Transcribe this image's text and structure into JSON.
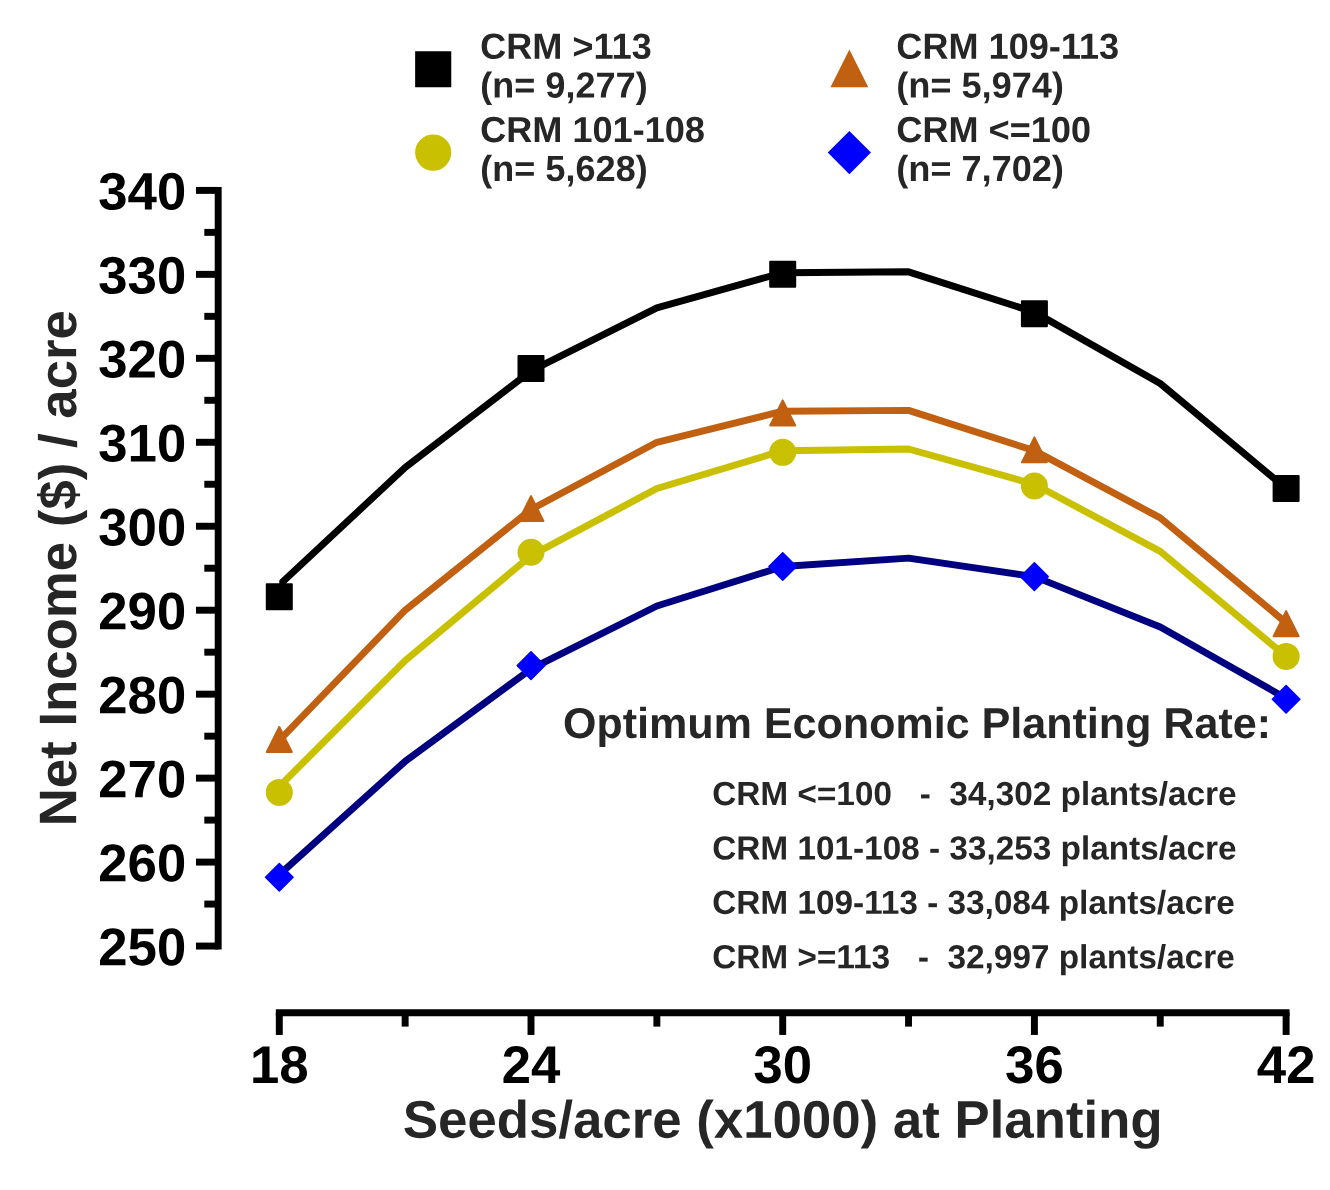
{
  "chart_data": {
    "type": "scatter",
    "xlabel": "Seeds/acre (x1000) at Planting",
    "ylabel": "Net Income ($) / acre",
    "x": [
      18,
      24,
      30,
      36,
      42
    ],
    "series": [
      {
        "type": "line",
        "color": "#000000",
        "x": [
          18,
          21,
          24,
          27,
          30,
          33,
          36,
          39,
          42
        ],
        "values": [
          293.0,
          307.0,
          318.5,
          326.0,
          330.2,
          330.3,
          325.5,
          317.0,
          304.5
        ]
      },
      {
        "type": "line",
        "color": "#c06010",
        "x": [
          18,
          21,
          24,
          27,
          30,
          33,
          36,
          39,
          42
        ],
        "values": [
          274.5,
          290.0,
          302.0,
          310.0,
          313.7,
          313.8,
          309.0,
          301.0,
          288.5
        ]
      },
      {
        "type": "line",
        "color": "#c8c000",
        "x": [
          18,
          21,
          24,
          27,
          30,
          33,
          36,
          39,
          42
        ],
        "values": [
          269.0,
          284.0,
          296.5,
          304.5,
          309.0,
          309.2,
          305.0,
          297.0,
          284.5
        ]
      },
      {
        "type": "line",
        "color": "#000080",
        "x": [
          18,
          21,
          24,
          27,
          30,
          33,
          36,
          39,
          42
        ],
        "values": [
          258.5,
          272.0,
          283.0,
          290.5,
          295.2,
          296.2,
          294.0,
          288.0,
          279.5
        ]
      },
      {
        "name": "CRM >113\n(n= 9,277)",
        "color": "#000000",
        "marker": "square",
        "values": [
          291.6,
          318.8,
          330.0,
          325.3,
          304.5
        ]
      },
      {
        "name": "CRM 109-113\n(n= 5,974)",
        "color": "#c06010",
        "marker": "triangle",
        "values": [
          274.6,
          302.1,
          313.5,
          309.1,
          288.4
        ]
      },
      {
        "name": "CRM 101-108\n(n= 5,628)",
        "color": "#c8c000",
        "marker": "circle",
        "values": [
          268.3,
          296.9,
          308.8,
          304.8,
          284.5
        ]
      },
      {
        "name": "CRM <=100\n(n= 7,702)",
        "color": "#0000ff",
        "marker": "diamond",
        "values": [
          258.2,
          283.4,
          295.2,
          294.0,
          279.4
        ]
      }
    ],
    "xlim": [
      18,
      42
    ],
    "xticks": [
      18,
      24,
      30,
      36,
      42
    ],
    "ylim": [
      250,
      340
    ],
    "yticks": [
      250,
      260,
      270,
      280,
      290,
      300,
      310,
      320,
      330,
      340
    ],
    "grid": false,
    "legend": "top",
    "line_style": "solid",
    "annotations": [
      "Optimum Economic Planting Rate:",
      "CRM <=100   -  34,302 plants/acre",
      "CRM 101-108 - 33,253 plants/acre",
      "CRM 109-113 - 33,084 plants/acre",
      "CRM >=113   -  32,997 plants/acre"
    ]
  }
}
